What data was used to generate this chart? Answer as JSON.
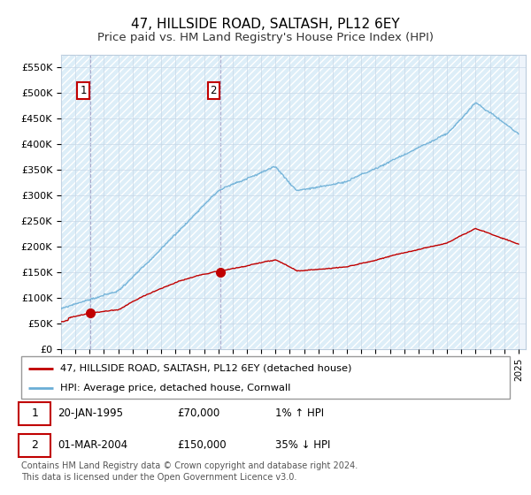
{
  "title": "47, HILLSIDE ROAD, SALTASH, PL12 6EY",
  "subtitle": "Price paid vs. HM Land Registry's House Price Index (HPI)",
  "ylim": [
    0,
    575000
  ],
  "yticks": [
    0,
    50000,
    100000,
    150000,
    200000,
    250000,
    300000,
    350000,
    400000,
    450000,
    500000,
    550000
  ],
  "ytick_labels": [
    "£0",
    "£50K",
    "£100K",
    "£150K",
    "£200K",
    "£250K",
    "£300K",
    "£350K",
    "£400K",
    "£450K",
    "£500K",
    "£550K"
  ],
  "hpi_color": "#6aaed6",
  "price_color": "#c00000",
  "sale1_date": 1995.05,
  "sale1_price": 70000,
  "sale1_label": "1",
  "sale2_date": 2004.17,
  "sale2_price": 150000,
  "sale2_label": "2",
  "legend_line1": "47, HILLSIDE ROAD, SALTASH, PL12 6EY (detached house)",
  "legend_line2": "HPI: Average price, detached house, Cornwall",
  "table_row1_num": "1",
  "table_row1_date": "20-JAN-1995",
  "table_row1_price": "£70,000",
  "table_row1_hpi": "1% ↑ HPI",
  "table_row2_num": "2",
  "table_row2_date": "01-MAR-2004",
  "table_row2_price": "£150,000",
  "table_row2_hpi": "35% ↓ HPI",
  "footnote": "Contains HM Land Registry data © Crown copyright and database right 2024.\nThis data is licensed under the Open Government Licence v3.0.",
  "title_fontsize": 11,
  "subtitle_fontsize": 9.5,
  "xlim_start": 1993,
  "xlim_end": 2025.5
}
